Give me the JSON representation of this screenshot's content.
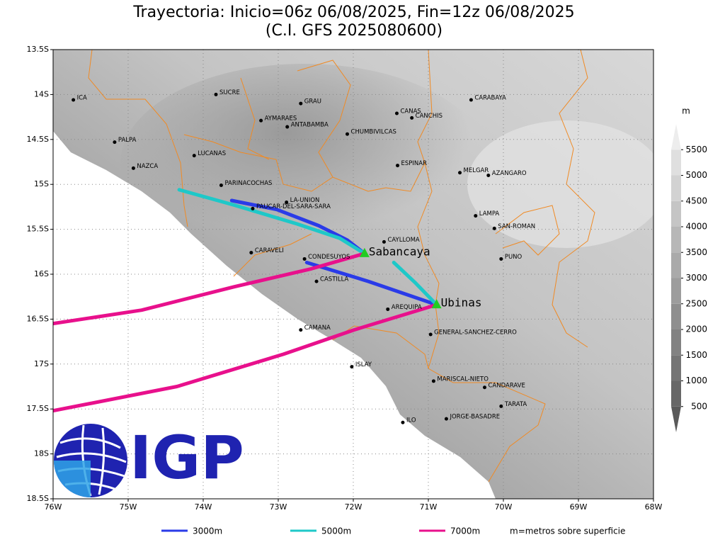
{
  "title": [
    "Trayectoria: Inicio=06z 06/08/2025, Fin=12z 06/08/2025",
    "(C.I. GFS 2025080600)"
  ],
  "map": {
    "xlim": [
      -76,
      -68
    ],
    "ylim": [
      -18.5,
      -13.5
    ],
    "xticks": [
      {
        "value": -76,
        "label": "76W"
      },
      {
        "value": -75,
        "label": "75W"
      },
      {
        "value": -74,
        "label": "74W"
      },
      {
        "value": -73,
        "label": "73W"
      },
      {
        "value": -72,
        "label": "72W"
      },
      {
        "value": -71,
        "label": "71W"
      },
      {
        "value": -70,
        "label": "70W"
      },
      {
        "value": -69,
        "label": "69W"
      },
      {
        "value": -68,
        "label": "68W"
      }
    ],
    "yticks": [
      {
        "value": -13.5,
        "label": "13.5S"
      },
      {
        "value": -14,
        "label": "14S"
      },
      {
        "value": -14.5,
        "label": "14.5S"
      },
      {
        "value": -15,
        "label": "15S"
      },
      {
        "value": -15.5,
        "label": "15.5S"
      },
      {
        "value": -16,
        "label": "16S"
      },
      {
        "value": -16.5,
        "label": "16.5S"
      },
      {
        "value": -17,
        "label": "17S"
      },
      {
        "value": -17.5,
        "label": "17.5S"
      },
      {
        "value": -18,
        "label": "18S"
      },
      {
        "value": -18.5,
        "label": "18.5S"
      }
    ],
    "places": [
      {
        "name": "ICA",
        "lon": -75.73,
        "lat": -14.06
      },
      {
        "name": "SUCRE",
        "lon": -73.83,
        "lat": -14.0
      },
      {
        "name": "GRAU",
        "lon": -72.7,
        "lat": -14.1
      },
      {
        "name": "AYMARAES",
        "lon": -73.23,
        "lat": -14.29
      },
      {
        "name": "ANTABAMBA",
        "lon": -72.88,
        "lat": -14.36
      },
      {
        "name": "CANAS",
        "lon": -71.42,
        "lat": -14.21
      },
      {
        "name": "CANCHIS",
        "lon": -71.22,
        "lat": -14.26
      },
      {
        "name": "CARABAYA",
        "lon": -70.43,
        "lat": -14.06
      },
      {
        "name": "CHUMBIVILCAS",
        "lon": -72.08,
        "lat": -14.44
      },
      {
        "name": "PALPA",
        "lon": -75.18,
        "lat": -14.53
      },
      {
        "name": "LUCANAS",
        "lon": -74.12,
        "lat": -14.68
      },
      {
        "name": "NAZCA",
        "lon": -74.93,
        "lat": -14.82
      },
      {
        "name": "ESPINAR",
        "lon": -71.41,
        "lat": -14.79
      },
      {
        "name": "MELGAR",
        "lon": -70.58,
        "lat": -14.87
      },
      {
        "name": "AZANGARO",
        "lon": -70.2,
        "lat": -14.9
      },
      {
        "name": "PARINACOCHAS",
        "lon": -73.76,
        "lat": -15.01
      },
      {
        "name": "LA-UNION",
        "lon": -72.89,
        "lat": -15.2
      },
      {
        "name": "PAUCAR-DEL-SARA-SARA",
        "lon": -73.34,
        "lat": -15.27
      },
      {
        "name": "LAMPA",
        "lon": -70.37,
        "lat": -15.35
      },
      {
        "name": "SAN-ROMAN",
        "lon": -70.12,
        "lat": -15.49
      },
      {
        "name": "CAYLLOMA",
        "lon": -71.59,
        "lat": -15.64
      },
      {
        "name": "CARAVELI",
        "lon": -73.36,
        "lat": -15.76
      },
      {
        "name": "CONDESUYOS",
        "lon": -72.65,
        "lat": -15.83
      },
      {
        "name": "PUNO",
        "lon": -70.03,
        "lat": -15.83
      },
      {
        "name": "CASTILLA",
        "lon": -72.49,
        "lat": -16.08
      },
      {
        "name": "AREQUIPA",
        "lon": -71.54,
        "lat": -16.39
      },
      {
        "name": "CAMANA",
        "lon": -72.7,
        "lat": -16.62
      },
      {
        "name": "GENERAL-SANCHEZ-CERRO",
        "lon": -70.97,
        "lat": -16.67
      },
      {
        "name": "ISLAY",
        "lon": -72.02,
        "lat": -17.03
      },
      {
        "name": "MARISCAL-NIETO",
        "lon": -70.93,
        "lat": -17.19
      },
      {
        "name": "CANDARAVE",
        "lon": -70.25,
        "lat": -17.26
      },
      {
        "name": "TARATA",
        "lon": -70.03,
        "lat": -17.47
      },
      {
        "name": "ILO",
        "lon": -71.34,
        "lat": -17.65
      },
      {
        "name": "JORGE-BASADRE",
        "lon": -70.76,
        "lat": -17.61
      }
    ],
    "volcanoes": [
      {
        "name": "Sabancaya",
        "lon": -71.85,
        "lat": -15.77
      },
      {
        "name": "Ubinas",
        "lon": -70.89,
        "lat": -16.34
      }
    ],
    "volcano_color": "#22cc22",
    "trajectories": [
      {
        "name": "3000m",
        "color": "#2a3be8",
        "paths": [
          {
            "lon": [
              -73.62,
              -73.02,
              -72.46,
              -72.08,
              -71.85
            ],
            "lat": [
              -15.18,
              -15.28,
              -15.46,
              -15.62,
              -15.77
            ]
          },
          {
            "lon": [
              -72.62,
              -71.8,
              -70.89
            ],
            "lat": [
              -15.87,
              -16.08,
              -16.34
            ]
          }
        ]
      },
      {
        "name": "5000m",
        "color": "#1ec8c8",
        "paths": [
          {
            "lon": [
              -74.32,
              -73.59,
              -72.75,
              -72.18,
              -71.85
            ],
            "lat": [
              -15.06,
              -15.23,
              -15.44,
              -15.6,
              -15.77
            ]
          },
          {
            "lon": [
              -71.46,
              -71.18,
              -70.89
            ],
            "lat": [
              -15.87,
              -16.09,
              -16.34
            ]
          }
        ]
      },
      {
        "name": "7000m",
        "color": "#e8108c",
        "paths": [
          {
            "lon": [
              -76,
              -74.82,
              -73.59,
              -72.56,
              -71.85
            ],
            "lat": [
              -16.55,
              -16.4,
              -16.14,
              -15.94,
              -15.77
            ]
          },
          {
            "lon": [
              -76,
              -74.35,
              -72.93,
              -71.99,
              -70.89
            ],
            "lat": [
              -17.52,
              -17.25,
              -16.89,
              -16.62,
              -16.34
            ]
          }
        ]
      }
    ]
  },
  "colorbar": {
    "unit": "m",
    "lim": [
      0,
      6000
    ],
    "ticks": [
      500,
      1000,
      1500,
      2000,
      2500,
      3000,
      3500,
      4000,
      4500,
      5000,
      5500
    ]
  },
  "note": "m=metros sobre superficie",
  "logo": "IGP"
}
